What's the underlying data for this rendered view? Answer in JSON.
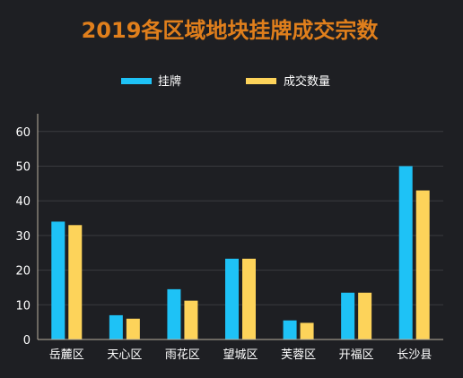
{
  "chart_data": {
    "type": "bar",
    "title": "2019各区域地块挂牌成交宗数",
    "categories": [
      "岳麓区",
      "天心区",
      "雨花区",
      "望城区",
      "芙蓉区",
      "开福区",
      "长沙县"
    ],
    "series": [
      {
        "name": "挂牌",
        "values": [
          34,
          7,
          14.5,
          23.3,
          5.5,
          13.5,
          50
        ],
        "color": "#1ec2f6"
      },
      {
        "name": "成交数量",
        "values": [
          33,
          6,
          11.2,
          23.3,
          4.8,
          13.5,
          43
        ],
        "color": "#fdd35a"
      }
    ],
    "yticks": [
      0,
      10,
      20,
      30,
      40,
      50,
      60
    ],
    "ylim": [
      0,
      65
    ],
    "grid": true,
    "legend": "top-center",
    "colors": {
      "title": "#e07f1c",
      "text": "#ffffff",
      "grid": "#3a3b3f",
      "axis": "#b9b09f"
    }
  }
}
